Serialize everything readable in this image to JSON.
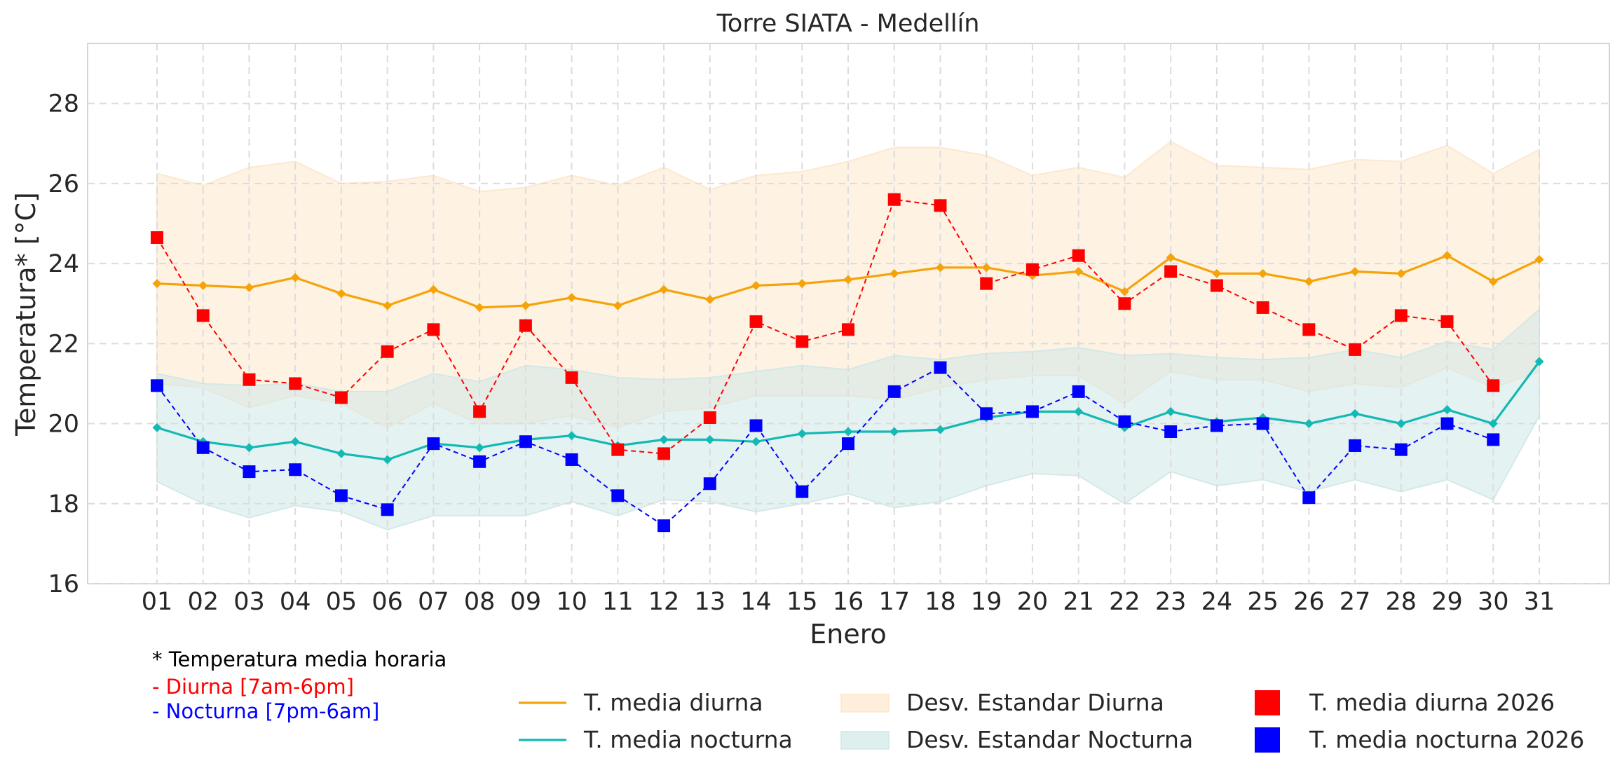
{
  "chart_data": {
    "type": "line",
    "title": "Torre SIATA - Medellín",
    "xlabel": "Enero",
    "ylabel": "Temperatura* [°C]",
    "ylim": [
      16,
      29.5
    ],
    "yticks": [
      "16",
      "18",
      "20",
      "22",
      "24",
      "26",
      "28"
    ],
    "grid": true,
    "categories": [
      "01",
      "02",
      "03",
      "04",
      "05",
      "06",
      "07",
      "08",
      "09",
      "10",
      "11",
      "12",
      "13",
      "14",
      "15",
      "16",
      "17",
      "18",
      "19",
      "20",
      "21",
      "22",
      "23",
      "24",
      "25",
      "26",
      "27",
      "28",
      "29",
      "30",
      "31"
    ],
    "series": [
      {
        "name": "T. media diurna",
        "kind": "line",
        "color": "#f5a30a",
        "values": [
          23.5,
          23.45,
          23.4,
          23.65,
          23.25,
          22.95,
          23.35,
          22.9,
          22.95,
          23.15,
          22.95,
          23.35,
          23.1,
          23.45,
          23.5,
          23.6,
          23.75,
          23.9,
          23.9,
          23.7,
          23.8,
          23.3,
          24.15,
          23.75,
          23.75,
          23.55,
          23.8,
          23.75,
          24.2,
          23.55,
          24.1
        ]
      },
      {
        "name": "T. media nocturna",
        "kind": "line",
        "color": "#14b9b4",
        "values": [
          19.9,
          19.55,
          19.4,
          19.55,
          19.25,
          19.1,
          19.5,
          19.4,
          19.6,
          19.7,
          19.45,
          19.6,
          19.6,
          19.55,
          19.75,
          19.8,
          19.8,
          19.85,
          20.15,
          20.3,
          20.3,
          19.9,
          20.3,
          20.05,
          20.15,
          20.0,
          20.25,
          20.0,
          20.35,
          20.0,
          21.55
        ]
      },
      {
        "name": "Desv. Estandar Diurna",
        "kind": "band",
        "color": "#fde7cc",
        "lower": [
          21.0,
          20.9,
          20.4,
          20.7,
          20.5,
          19.9,
          20.5,
          20.0,
          20.0,
          20.2,
          19.9,
          20.3,
          20.4,
          20.7,
          20.7,
          20.7,
          20.6,
          20.9,
          21.1,
          21.2,
          21.2,
          20.5,
          21.3,
          21.1,
          21.1,
          20.8,
          21.0,
          20.9,
          21.4,
          20.9,
          21.3
        ],
        "upper": [
          26.25,
          25.95,
          26.4,
          26.55,
          26.0,
          26.05,
          26.2,
          25.8,
          25.9,
          26.2,
          25.95,
          26.4,
          25.85,
          26.2,
          26.3,
          26.55,
          26.9,
          26.9,
          26.7,
          26.2,
          26.4,
          26.15,
          27.05,
          26.45,
          26.4,
          26.35,
          26.6,
          26.55,
          26.95,
          26.25,
          26.85
        ]
      },
      {
        "name": "Desv. Estandar Nocturna",
        "kind": "band",
        "color": "#cfe8e7",
        "lower": [
          18.55,
          18.0,
          17.65,
          17.95,
          17.8,
          17.35,
          17.7,
          17.7,
          17.7,
          18.05,
          17.7,
          18.1,
          18.05,
          17.8,
          18.0,
          18.25,
          17.9,
          18.05,
          18.45,
          18.75,
          18.7,
          18.0,
          18.8,
          18.45,
          18.6,
          18.3,
          18.6,
          18.3,
          18.6,
          18.1,
          20.2
        ],
        "upper": [
          21.25,
          21.0,
          20.95,
          21.0,
          20.8,
          20.8,
          21.25,
          21.05,
          21.45,
          21.35,
          21.15,
          21.1,
          21.15,
          21.3,
          21.45,
          21.35,
          21.7,
          21.6,
          21.75,
          21.8,
          21.9,
          21.7,
          21.75,
          21.65,
          21.6,
          21.65,
          21.85,
          21.65,
          22.05,
          21.85,
          22.85
        ]
      },
      {
        "name": "T. media diurna 2026",
        "kind": "markers",
        "color": "#ff0000",
        "values": [
          24.65,
          22.7,
          21.1,
          21.0,
          20.65,
          21.8,
          22.35,
          20.3,
          22.45,
          21.15,
          19.35,
          19.25,
          20.15,
          22.55,
          22.05,
          22.35,
          25.6,
          25.45,
          23.5,
          23.85,
          24.2,
          23.0,
          23.8,
          23.45,
          22.9,
          22.35,
          21.85,
          22.7,
          22.55,
          20.95,
          null
        ]
      },
      {
        "name": "T. media nocturna 2026",
        "kind": "markers",
        "color": "#0000ff",
        "values": [
          20.95,
          19.4,
          18.8,
          18.85,
          18.2,
          17.85,
          19.5,
          19.05,
          19.55,
          19.1,
          18.2,
          17.45,
          18.5,
          19.95,
          18.3,
          19.5,
          20.8,
          21.4,
          20.25,
          20.3,
          20.8,
          20.05,
          19.8,
          19.95,
          20.0,
          18.15,
          19.45,
          19.35,
          20.0,
          19.6,
          null
        ]
      }
    ],
    "legend": {
      "placement": "bottom",
      "entries": [
        "T. media diurna",
        "T. media nocturna",
        "Desv. Estandar Diurna",
        "Desv. Estandar Nocturna",
        "T. media diurna 2026",
        "T. media nocturna 2026"
      ]
    }
  },
  "notes": {
    "line1": "* Temperatura media horaria",
    "line2": "- Diurna [7am-6pm]",
    "line3": "- Nocturna [7pm-6am]",
    "color_day": "#ff0000",
    "color_night": "#0000ff"
  }
}
